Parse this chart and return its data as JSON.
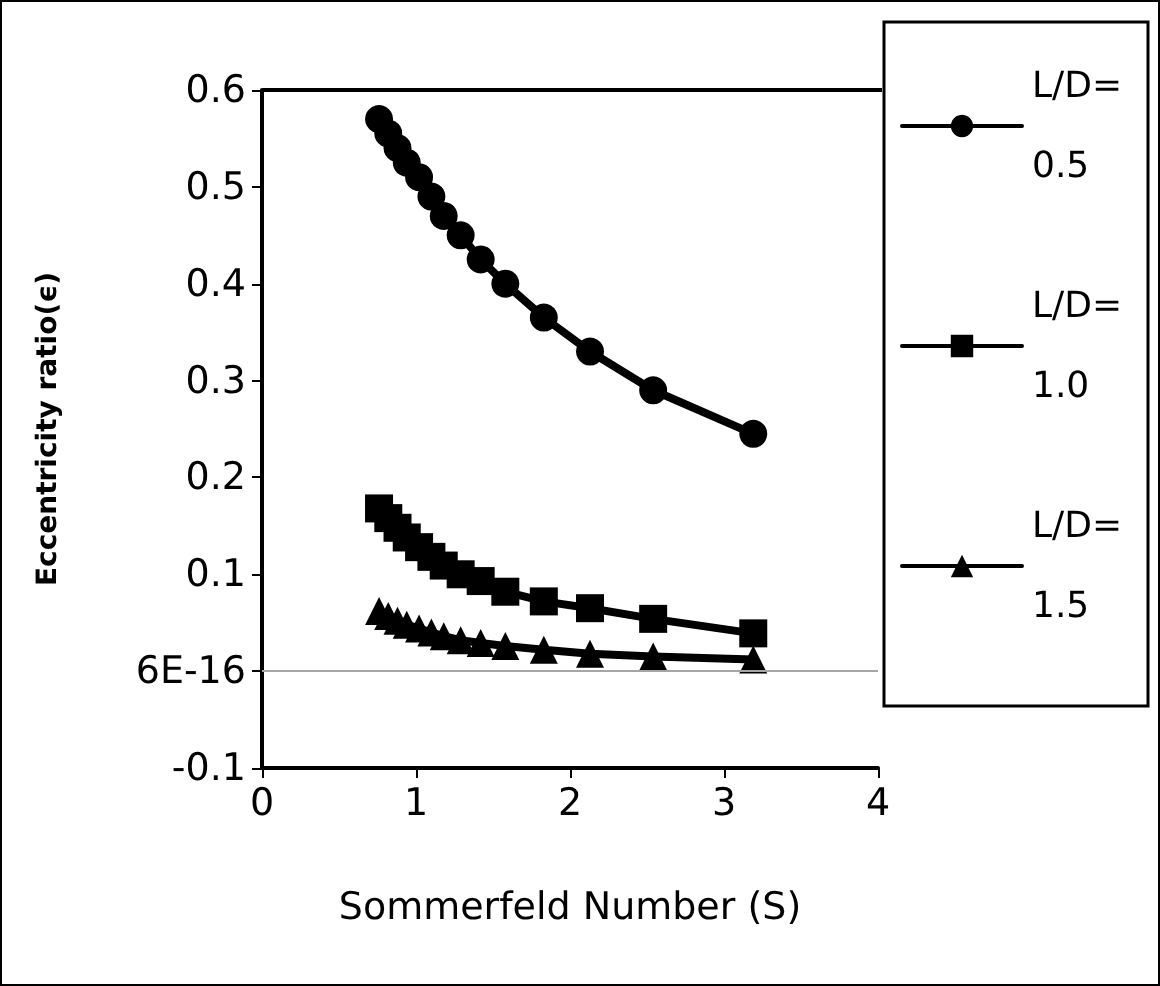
{
  "chart_data": {
    "type": "line",
    "xlabel": "Sommerfeld Number (S)",
    "ylabel": "Eccentricity ratio(ϵ)",
    "xlim": [
      0,
      4
    ],
    "xticks": [
      0,
      1,
      2,
      3,
      4
    ],
    "ylim": [
      -0.1,
      0.6
    ],
    "yticks": [
      -0.1,
      {
        "value": 0,
        "label": "6E-16"
      },
      0.1,
      0.2,
      0.3,
      0.4,
      0.5,
      0.6
    ],
    "grid": false,
    "legend": "right",
    "line_style": "solid",
    "ref_lines": [
      {
        "axis": "y",
        "value": 0,
        "color": "#a6a6a6"
      }
    ],
    "x": [
      0.76,
      0.82,
      0.88,
      0.94,
      1.02,
      1.1,
      1.18,
      1.29,
      1.42,
      1.58,
      1.83,
      2.13,
      2.54,
      3.19
    ],
    "series": [
      {
        "name": "L/D=0.5",
        "color": "#000000",
        "marker": "circle",
        "values": [
          0.57,
          0.555,
          0.54,
          0.525,
          0.51,
          0.49,
          0.47,
          0.45,
          0.425,
          0.4,
          0.365,
          0.33,
          0.29,
          0.245
        ]
      },
      {
        "name": "L/D=1.0",
        "color": "#000000",
        "marker": "square",
        "values": [
          0.168,
          0.158,
          0.148,
          0.138,
          0.128,
          0.118,
          0.109,
          0.1,
          0.093,
          0.082,
          0.072,
          0.065,
          0.054,
          0.039
        ]
      },
      {
        "name": "L/D=1.5",
        "color": "#000000",
        "marker": "triangle",
        "values": [
          0.062,
          0.057,
          0.052,
          0.048,
          0.044,
          0.04,
          0.036,
          0.032,
          0.029,
          0.026,
          0.022,
          0.018,
          0.015,
          0.012
        ]
      }
    ]
  }
}
